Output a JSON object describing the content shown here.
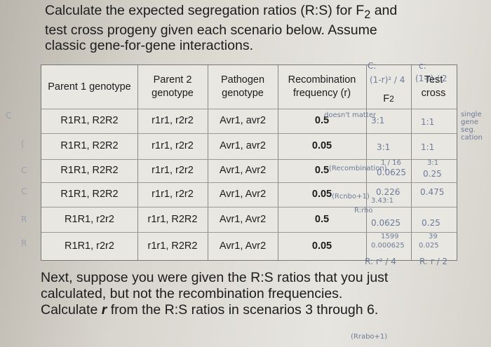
{
  "intro": {
    "line1": "Calculate the expected segregation ratios (R:S) for F",
    "line1_sub": "2",
    "line1_end": " and",
    "line2": "test cross progeny given each scenario below. Assume",
    "line3": "classic gene-for-gene interactions."
  },
  "table": {
    "headers": [
      "Parent 1 genotype",
      "Parent 2 genotype",
      "Pathogen genotype",
      "Recombination frequency (r)",
      "F2",
      "Test cross"
    ],
    "rows": [
      {
        "p1": "R1R1, R2R2",
        "p2": "r1r1, r2r2",
        "path": "Avr1, avr2",
        "r": "0.5"
      },
      {
        "p1": "R1R1, R2R2",
        "p2": "r1r1, r2r2",
        "path": "Avr1, avr2",
        "r": "0.05"
      },
      {
        "p1": "R1R1, R2R2",
        "p2": "r1r1, r2r2",
        "path": "Avr1, Avr2",
        "r": "0.5"
      },
      {
        "p1": "R1R1, R2R2",
        "p2": "r1r1, r2r2",
        "path": "Avr1, Avr2",
        "r": "0.05"
      },
      {
        "p1": "R1R1, r2r2",
        "p2": "r1r1, R2R2",
        "path": "Avr1, Avr2",
        "r": "0.5"
      },
      {
        "p1": "R1R1, r2r2",
        "p2": "r1r1, R2R2",
        "path": "Avr1, Avr2",
        "r": "0.05"
      }
    ]
  },
  "handwriting": {
    "c_top": "C:",
    "c_top2": "c:",
    "f2_formula": "(1-r)² / 4",
    "tc_formula": "(1-r) / 2",
    "row1_note": "doesn't matter",
    "row1_f2": "3:1",
    "row1_tc": "1:1",
    "row2_f2": "3:1",
    "row2_tc": "1:1",
    "side_note": "single gene seg. cation",
    "row3_rec": "(Recombination)",
    "row3_f2_top": "1 / 16",
    "row3_f2": "0.0625",
    "row3_tc_top": "3:1",
    "row3_tc": "0.25",
    "row4_rec": "(Rcnbo+1)",
    "row4_f2": "0.226",
    "row4_f2b": "3.43:1",
    "row4_tc": "0.475",
    "row5_note": "R:rho",
    "row5_f2": "0.0625",
    "row5_tc": "0.25",
    "row6_f2_top": "1599",
    "row6_f2": "0.000625",
    "row6_tc_top": "39",
    "row6_tc": "0.025",
    "bottom_left": "R: r² / 4",
    "bottom_right": "R: r / 2",
    "bottom_note": "(Rrabo+1)",
    "margin": [
      "C",
      "(",
      "C",
      "C",
      "R",
      "R"
    ]
  },
  "outro": {
    "line1": "Next, suppose you were given the R:S ratios that you just",
    "line2": "calculated, but not the recombination frequencies.",
    "line3_pre": "Calculate ",
    "line3_r": "r",
    "line3_post": " from the R:S ratios in scenarios 3 through 6."
  }
}
